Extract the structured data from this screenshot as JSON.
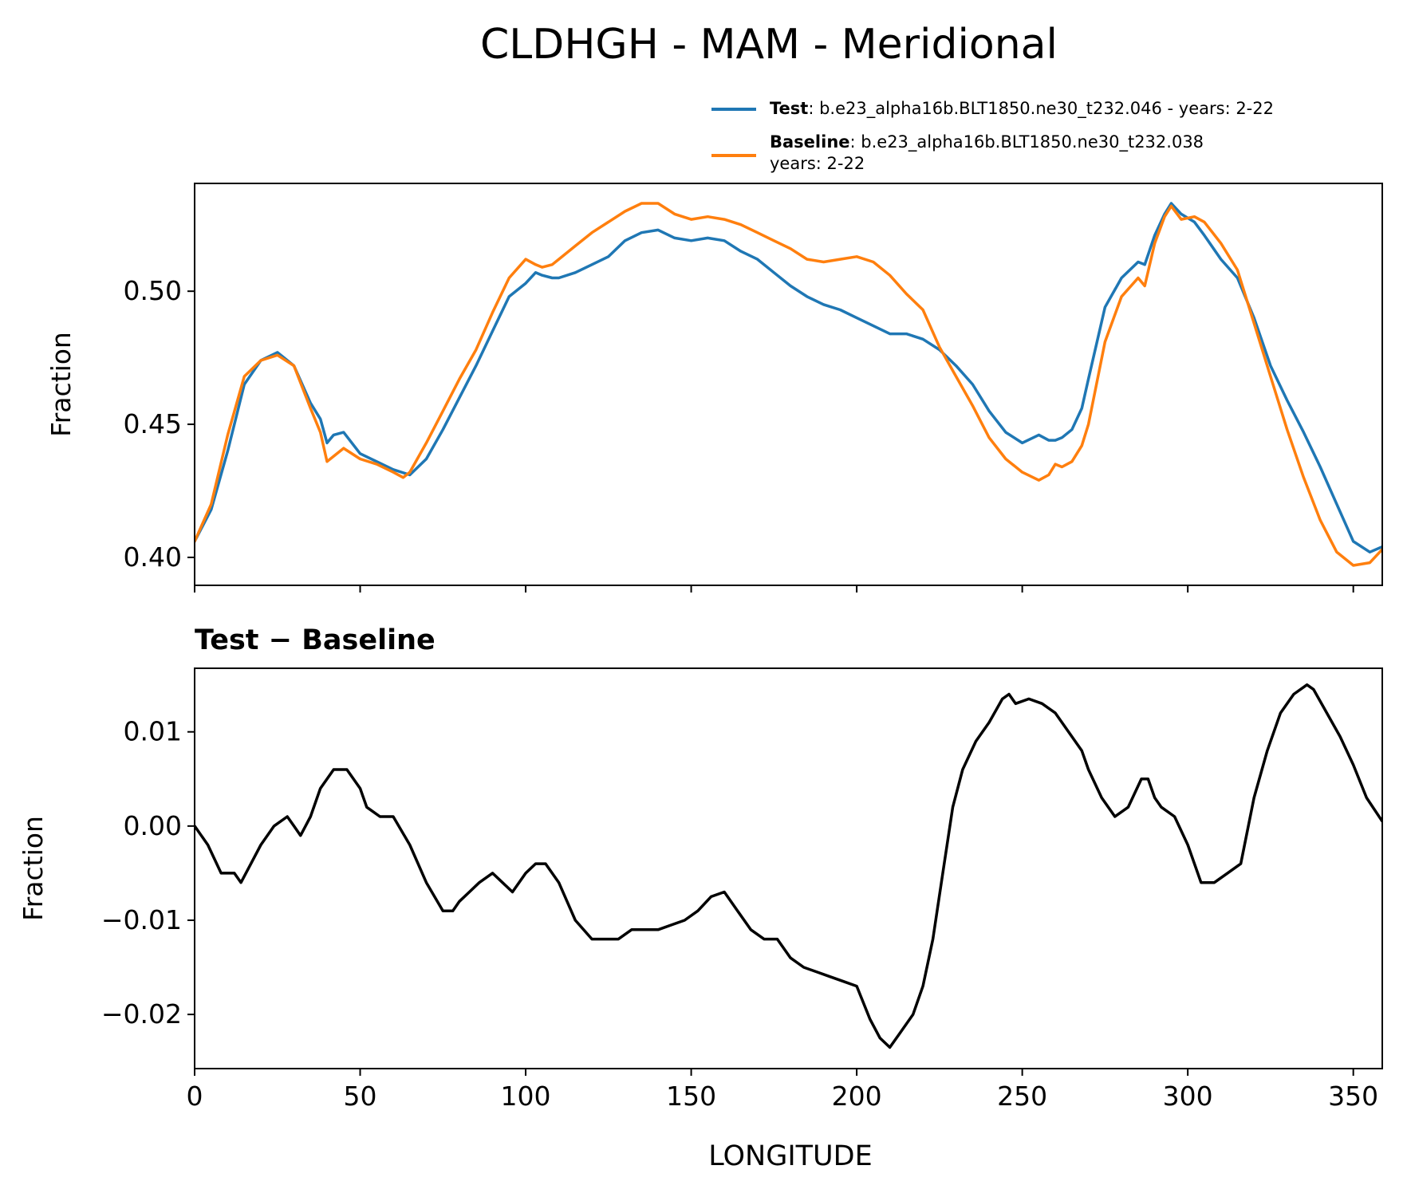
{
  "chart_data": [
    {
      "type": "line",
      "title": "CLDHGH - MAM - Meridional",
      "subtitle": "",
      "xlabel": "",
      "ylabel": "Fraction",
      "xlim": [
        0,
        358.75
      ],
      "ylim": [
        0.3895,
        0.5405
      ],
      "yticks": [
        0.4,
        0.45,
        0.5
      ],
      "ytick_labels": [
        "0.40",
        "0.45",
        "0.50"
      ],
      "xticks": [
        0,
        50,
        100,
        150,
        200,
        250,
        300,
        350
      ],
      "grid": false,
      "legend": {
        "position": "above-top-right",
        "entries": [
          {
            "name": "Test",
            "desc": ": b.e23_alpha16b.BLT1850.ne30_t232.046 - years: 2-22",
            "color": "#1f77b4"
          },
          {
            "name": "Baseline",
            "desc": ": b.e23_alpha16b.BLT1850.ne30_t232.038",
            "desc2": "years: 2-22",
            "color": "#ff7f0e"
          }
        ]
      },
      "series": [
        {
          "name": "Test",
          "color": "#1f77b4",
          "x": [
            0,
            5,
            10,
            15,
            20,
            25,
            30,
            35,
            38,
            40,
            42,
            45,
            50,
            55,
            60,
            65,
            70,
            75,
            80,
            85,
            90,
            95,
            100,
            103,
            105,
            108,
            110,
            115,
            120,
            125,
            130,
            135,
            140,
            145,
            150,
            155,
            160,
            165,
            170,
            175,
            180,
            185,
            190,
            195,
            200,
            205,
            210,
            215,
            220,
            225,
            230,
            235,
            240,
            245,
            250,
            255,
            258,
            260,
            262,
            265,
            268,
            270,
            275,
            280,
            285,
            287,
            290,
            293,
            295,
            298,
            302,
            305,
            310,
            315,
            320,
            325,
            330,
            335,
            340,
            345,
            350,
            355,
            358.75
          ],
          "values": [
            0.406,
            0.418,
            0.44,
            0.465,
            0.474,
            0.477,
            0.472,
            0.458,
            0.452,
            0.443,
            0.446,
            0.447,
            0.439,
            0.436,
            0.433,
            0.431,
            0.437,
            0.448,
            0.46,
            0.472,
            0.485,
            0.498,
            0.503,
            0.507,
            0.506,
            0.505,
            0.505,
            0.507,
            0.51,
            0.513,
            0.519,
            0.522,
            0.523,
            0.52,
            0.519,
            0.52,
            0.519,
            0.515,
            0.512,
            0.507,
            0.502,
            0.498,
            0.495,
            0.493,
            0.49,
            0.487,
            0.484,
            0.484,
            0.482,
            0.478,
            0.472,
            0.465,
            0.455,
            0.447,
            0.443,
            0.446,
            0.444,
            0.444,
            0.445,
            0.448,
            0.456,
            0.467,
            0.494,
            0.505,
            0.511,
            0.51,
            0.521,
            0.529,
            0.533,
            0.529,
            0.526,
            0.521,
            0.512,
            0.505,
            0.49,
            0.472,
            0.459,
            0.447,
            0.434,
            0.42,
            0.406,
            0.402,
            0.404
          ]
        },
        {
          "name": "Baseline",
          "color": "#ff7f0e",
          "x": [
            0,
            5,
            10,
            15,
            20,
            25,
            30,
            35,
            38,
            40,
            42,
            45,
            50,
            55,
            60,
            63,
            65,
            70,
            75,
            80,
            85,
            90,
            95,
            100,
            103,
            105,
            108,
            110,
            115,
            120,
            125,
            130,
            135,
            140,
            145,
            150,
            155,
            160,
            165,
            170,
            175,
            180,
            185,
            190,
            195,
            200,
            205,
            210,
            215,
            220,
            225,
            230,
            235,
            240,
            245,
            250,
            255,
            258,
            260,
            262,
            265,
            268,
            270,
            275,
            280,
            285,
            287,
            290,
            293,
            295,
            298,
            302,
            305,
            310,
            315,
            320,
            325,
            330,
            335,
            340,
            345,
            350,
            355,
            358.75
          ],
          "values": [
            0.406,
            0.42,
            0.446,
            0.468,
            0.474,
            0.476,
            0.472,
            0.456,
            0.447,
            0.436,
            0.438,
            0.441,
            0.437,
            0.435,
            0.432,
            0.43,
            0.432,
            0.443,
            0.455,
            0.467,
            0.478,
            0.492,
            0.505,
            0.512,
            0.51,
            0.509,
            0.51,
            0.512,
            0.517,
            0.522,
            0.526,
            0.53,
            0.533,
            0.533,
            0.529,
            0.527,
            0.528,
            0.527,
            0.525,
            0.522,
            0.519,
            0.516,
            0.512,
            0.511,
            0.512,
            0.513,
            0.511,
            0.506,
            0.499,
            0.493,
            0.479,
            0.468,
            0.457,
            0.445,
            0.437,
            0.432,
            0.429,
            0.431,
            0.435,
            0.434,
            0.436,
            0.442,
            0.45,
            0.481,
            0.498,
            0.505,
            0.502,
            0.518,
            0.528,
            0.532,
            0.527,
            0.528,
            0.526,
            0.518,
            0.508,
            0.488,
            0.468,
            0.448,
            0.43,
            0.414,
            0.402,
            0.397,
            0.398,
            0.403
          ]
        }
      ]
    },
    {
      "type": "line",
      "title": "Test − Baseline",
      "xlabel": "LONGITUDE",
      "ylabel": "Fraction",
      "xlim": [
        0,
        358.75
      ],
      "ylim": [
        -0.02575,
        0.01675
      ],
      "yticks": [
        -0.02,
        -0.01,
        0.0,
        0.01
      ],
      "ytick_labels": [
        "−0.02",
        "−0.01",
        "0.00",
        "0.01"
      ],
      "xticks": [
        0,
        50,
        100,
        150,
        200,
        250,
        300,
        350
      ],
      "xtick_labels": [
        "0",
        "50",
        "100",
        "150",
        "200",
        "250",
        "300",
        "350"
      ],
      "grid": false,
      "series": [
        {
          "name": "Test − Baseline",
          "color": "#000000",
          "x": [
            0,
            4,
            8,
            12,
            14,
            17,
            20,
            24,
            28,
            30,
            32,
            35,
            38,
            42,
            46,
            50,
            52,
            56,
            60,
            65,
            70,
            75,
            78,
            80,
            83,
            86,
            90,
            93,
            96,
            100,
            103,
            106,
            110,
            115,
            120,
            124,
            128,
            132,
            136,
            140,
            144,
            148,
            152,
            156,
            160,
            164,
            168,
            172,
            176,
            180,
            184,
            188,
            192,
            196,
            200,
            204,
            207,
            210,
            213,
            217,
            220,
            223,
            226,
            229,
            232,
            236,
            240,
            244,
            246,
            248,
            252,
            256,
            260,
            264,
            268,
            270,
            274,
            278,
            282,
            286,
            288,
            290,
            292,
            296,
            300,
            304,
            308,
            312,
            316,
            320,
            324,
            328,
            332,
            336,
            338,
            342,
            346,
            350,
            354,
            358.75
          ],
          "values": [
            0.0,
            -0.002,
            -0.005,
            -0.005,
            -0.006,
            -0.004,
            -0.002,
            0.0,
            0.001,
            0.0,
            -0.001,
            0.001,
            0.004,
            0.006,
            0.006,
            0.004,
            0.002,
            0.001,
            0.001,
            -0.002,
            -0.006,
            -0.009,
            -0.009,
            -0.008,
            -0.007,
            -0.006,
            -0.005,
            -0.006,
            -0.007,
            -0.005,
            -0.004,
            -0.004,
            -0.006,
            -0.01,
            -0.012,
            -0.012,
            -0.012,
            -0.011,
            -0.011,
            -0.011,
            -0.0105,
            -0.01,
            -0.009,
            -0.0075,
            -0.007,
            -0.009,
            -0.011,
            -0.012,
            -0.012,
            -0.014,
            -0.015,
            -0.0155,
            -0.016,
            -0.0165,
            -0.017,
            -0.0205,
            -0.0225,
            -0.0235,
            -0.022,
            -0.02,
            -0.017,
            -0.012,
            -0.005,
            0.002,
            0.006,
            0.009,
            0.011,
            0.0135,
            0.014,
            0.013,
            0.0135,
            0.013,
            0.012,
            0.01,
            0.008,
            0.006,
            0.003,
            0.001,
            0.002,
            0.005,
            0.005,
            0.003,
            0.002,
            0.001,
            -0.002,
            -0.006,
            -0.006,
            -0.005,
            -0.004,
            0.003,
            0.008,
            0.012,
            0.014,
            0.015,
            0.0145,
            0.012,
            0.0095,
            0.0065,
            0.003,
            0.0005
          ]
        }
      ]
    }
  ]
}
